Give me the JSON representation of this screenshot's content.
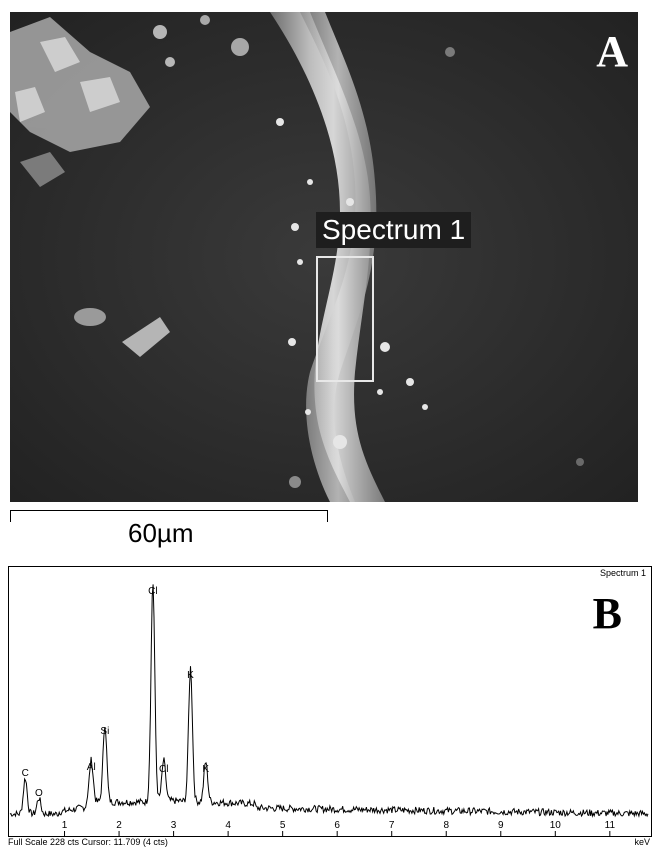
{
  "panel_a": {
    "letter": "A",
    "spectrum_label": "Spectrum 1",
    "scale_bar_label": "60µm"
  },
  "panel_b": {
    "letter": "B",
    "spectrum_title": "Spectrum 1",
    "footer": "Full Scale 228 cts Cursor: 11.709  (4 cts)",
    "x_unit": "keV"
  },
  "chart_data": {
    "type": "line",
    "title": "Spectrum 1",
    "xlabel": "keV",
    "ylabel": "",
    "xlim": [
      0,
      11.7
    ],
    "ylim": [
      0,
      228
    ],
    "x_ticks": [
      "1",
      "2",
      "3",
      "4",
      "5",
      "6",
      "7",
      "8",
      "9",
      "10",
      "11"
    ],
    "peaks": [
      {
        "label": "C",
        "x": 0.28,
        "y": 36
      },
      {
        "label": "O",
        "x": 0.53,
        "y": 16
      },
      {
        "label": "Al",
        "x": 1.49,
        "y": 42
      },
      {
        "label": "Si",
        "x": 1.74,
        "y": 78
      },
      {
        "label": "Cl",
        "x": 2.62,
        "y": 218
      },
      {
        "label": "Cl",
        "x": 2.82,
        "y": 40
      },
      {
        "label": "K",
        "x": 3.31,
        "y": 134
      },
      {
        "label": "K",
        "x": 3.59,
        "y": 40
      }
    ],
    "background_level": 8,
    "full_scale_counts": 228,
    "cursor_kev": 11.709,
    "cursor_counts": 4
  }
}
